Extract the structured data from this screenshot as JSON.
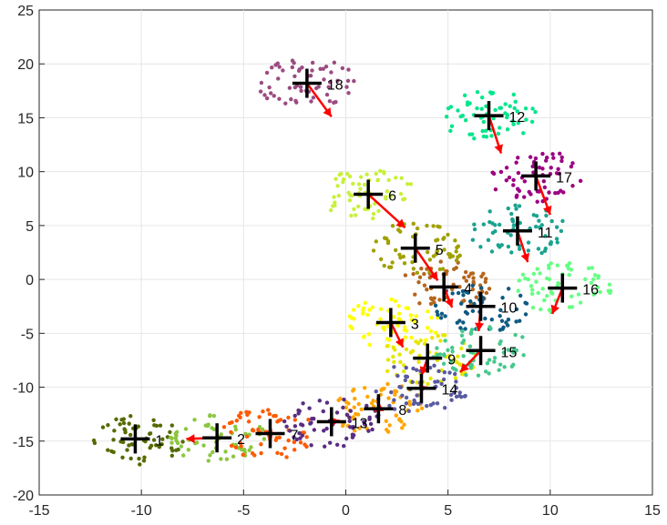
{
  "chart_data": {
    "type": "scatter",
    "title": "",
    "xlabel": "",
    "ylabel": "",
    "xlim": [
      -15,
      15
    ],
    "ylim": [
      -20,
      25
    ],
    "xticks": [
      -15,
      -10,
      -5,
      0,
      5,
      10,
      15
    ],
    "yticks": [
      -20,
      -15,
      -10,
      -5,
      0,
      5,
      10,
      15,
      20,
      25
    ],
    "xtick_labels": [
      "-15",
      "-10",
      "-5",
      "0",
      "5",
      "10",
      "15"
    ],
    "ytick_labels": [
      "-20",
      "-15",
      "-10",
      "-5",
      "0",
      "5",
      "10",
      "15",
      "20",
      "25"
    ],
    "grid": true,
    "clusters": [
      {
        "label": "1",
        "centroid": [
          -10.3,
          -14.8
        ],
        "arrow_to": [
          -10.3,
          -14.8
        ],
        "color": "#556b00"
      },
      {
        "label": "2",
        "centroid": [
          -6.3,
          -14.7
        ],
        "arrow_to": [
          -7.8,
          -14.8
        ],
        "color": "#8cc63f"
      },
      {
        "label": "3",
        "centroid": [
          2.2,
          -4.0
        ],
        "arrow_to": [
          2.8,
          -6.3
        ],
        "color": "#ffff00"
      },
      {
        "label": "4",
        "centroid": [
          4.8,
          -0.7
        ],
        "arrow_to": [
          5.2,
          -2.6
        ],
        "color": "#b5651d"
      },
      {
        "label": "5",
        "centroid": [
          3.4,
          2.9
        ],
        "arrow_to": [
          4.5,
          -0.1
        ],
        "color": "#a0a000"
      },
      {
        "label": "6",
        "centroid": [
          1.1,
          7.9
        ],
        "arrow_to": [
          2.9,
          4.8
        ],
        "color": "#c8f03c"
      },
      {
        "label": "7",
        "centroid": [
          -3.7,
          -14.3
        ],
        "arrow_to": [
          -4.0,
          -14.3
        ],
        "color": "#ff5a00"
      },
      {
        "label": "8",
        "centroid": [
          1.6,
          -12.0
        ],
        "arrow_to": [
          1.4,
          -12.2
        ],
        "color": "#ffa500"
      },
      {
        "label": "9",
        "centroid": [
          4.0,
          -7.3
        ],
        "arrow_to": [
          3.7,
          -8.9
        ],
        "color": "#e6e600"
      },
      {
        "label": "10",
        "centroid": [
          6.6,
          -2.5
        ],
        "arrow_to": [
          6.5,
          -4.8
        ],
        "color": "#0f5a82"
      },
      {
        "label": "11",
        "centroid": [
          8.4,
          4.5
        ],
        "arrow_to": [
          8.9,
          1.6
        ],
        "color": "#1aa390"
      },
      {
        "label": "12",
        "centroid": [
          7.0,
          15.2
        ],
        "arrow_to": [
          7.6,
          11.7
        ],
        "color": "#00e68c"
      },
      {
        "label": "13",
        "centroid": [
          -0.7,
          -13.2
        ],
        "arrow_to": [
          -0.3,
          -13.1
        ],
        "color": "#5a2d82"
      },
      {
        "label": "14",
        "centroid": [
          3.7,
          -10.1
        ],
        "arrow_to": [
          4.0,
          -10.0
        ],
        "color": "#5a5aa0"
      },
      {
        "label": "15",
        "centroid": [
          6.6,
          -6.6
        ],
        "arrow_to": [
          5.6,
          -8.6
        ],
        "color": "#46c88c"
      },
      {
        "label": "16",
        "centroid": [
          10.6,
          -0.8
        ],
        "arrow_to": [
          10.1,
          -3.2
        ],
        "color": "#64ff82"
      },
      {
        "label": "17",
        "centroid": [
          9.3,
          9.6
        ],
        "arrow_to": [
          10.0,
          6.0
        ],
        "color": "#9b0082"
      },
      {
        "label": "18",
        "centroid": [
          -1.9,
          18.2
        ],
        "arrow_to": [
          -0.7,
          15.1
        ],
        "color": "#9b4b82"
      }
    ]
  }
}
